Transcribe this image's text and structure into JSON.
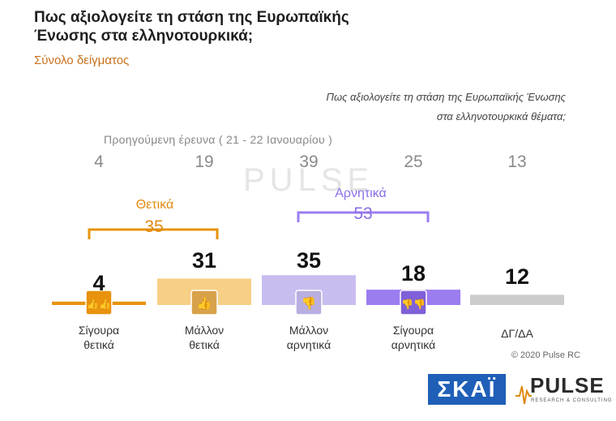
{
  "title": "Πως αξιολογείτε τη στάση της Ευρωπαϊκής Ένωσης στα ελληνοτουρκικά;",
  "subtitle": "Σύνολο δείγματος",
  "question_line1": "Πως αξιολογείτε τη στάση της Ευρωπαϊκής Ένωσης",
  "question_line2": "στα ελληνοτουρκικά θέματα;",
  "previous_label": "Προηγούμενη έρευνα   ( 21 - 22 Ιανουαρίου )",
  "positive_group": {
    "label": "Θετικά",
    "total": "35"
  },
  "negative_group": {
    "label": "Αρνητικά",
    "total": "53"
  },
  "copyright": "© 2020 Pulse RC",
  "watermark": "PULSE",
  "logos": {
    "skai": "ΣΚΑΪ",
    "pulse": "PULSE",
    "pulse_tagline": "RESEARCH & CONSULTING"
  },
  "colors": {
    "positive_strong": "#e8920e",
    "positive_soft": "#f7cf86",
    "negative_soft": "#c9bdf0",
    "negative_strong": "#9b7df0",
    "neutral": "#cccccc"
  },
  "icons": [
    "thumbs-up-double-icon",
    "thumbs-up-icon",
    "thumbs-down-icon",
    "thumbs-down-double-icon"
  ],
  "chart_data": {
    "type": "bar",
    "categories": [
      "Σίγουρα θετικά",
      "Μάλλον θετικά",
      "Μάλλον αρνητικά",
      "Σίγουρα αρνητικά",
      "ΔΓ/ΔΑ"
    ],
    "category_lines": [
      [
        "Σίγουρα",
        "θετικά"
      ],
      [
        "Μάλλον",
        "θετικά"
      ],
      [
        "Μάλλον",
        "αρνητικά"
      ],
      [
        "Σίγουρα",
        "αρνητικά"
      ],
      [
        "ΔΓ/ΔΑ",
        ""
      ]
    ],
    "values": [
      4,
      31,
      35,
      18,
      12
    ],
    "value_labels": [
      "4",
      "31",
      "35",
      "18",
      "12"
    ],
    "previous_values": [
      4,
      19,
      39,
      25,
      13
    ],
    "previous_labels": [
      "4",
      "19",
      "39",
      "25",
      "13"
    ],
    "ylim": [
      0,
      40
    ]
  }
}
